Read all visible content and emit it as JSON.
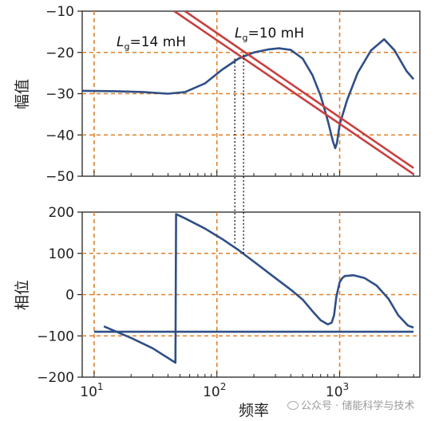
{
  "chart_data": [
    {
      "type": "line",
      "ylabel": "幅值",
      "xscale": "log",
      "xlim": [
        8,
        4500
      ],
      "ylim": [
        -50,
        -10
      ],
      "yticks": [
        -10,
        -20,
        -30,
        -40,
        -50
      ],
      "grid": true,
      "annotations": [
        {
          "L": "L",
          "sub": "g",
          "text": "=14 mH"
        },
        {
          "L": "L",
          "sub": "g",
          "text": "=10 mH"
        }
      ],
      "series": [
        {
          "role": "converter-magnitude",
          "color": "#2f4f86",
          "x": [
            8,
            15,
            25,
            40,
            55,
            80,
            110,
            150,
            200,
            260,
            320,
            400,
            500,
            600,
            700,
            800,
            880,
            920,
            950,
            1000,
            1150,
            1400,
            1800,
            2300,
            2800,
            3500,
            4000
          ],
          "y": [
            -29.3,
            -29.4,
            -29.6,
            -30,
            -29.6,
            -27.5,
            -24.2,
            -21.5,
            -20.0,
            -19.3,
            -19.0,
            -19.4,
            -21.5,
            -25.5,
            -30.5,
            -36.5,
            -41.5,
            -43.2,
            -42.0,
            -37.5,
            -31.5,
            -25.0,
            -19.5,
            -16.8,
            -19.5,
            -24.5,
            -26.5
          ]
        },
        {
          "role": "grid-impedance-Lg14",
          "color": "#c84040",
          "x": [
            45,
            4000
          ],
          "y": [
            -10,
            -49.5
          ]
        },
        {
          "role": "grid-impedance-Lg10",
          "color": "#c84040",
          "x": [
            55,
            4000
          ],
          "y": [
            -10,
            -48
          ]
        }
      ]
    },
    {
      "type": "line",
      "xlabel": "频率",
      "ylabel": "相位",
      "xscale": "log",
      "xlim": [
        8,
        4500
      ],
      "ylim": [
        -200,
        200
      ],
      "yticks": [
        200,
        100,
        0,
        -100,
        -200
      ],
      "xticks": [
        {
          "value": 10,
          "base": "10",
          "exp": "1"
        },
        {
          "value": 100,
          "base": "10",
          "exp": "2"
        },
        {
          "value": 1000,
          "base": "10",
          "exp": "3"
        }
      ],
      "grid": true,
      "series": [
        {
          "role": "converter-phase",
          "color": "#2f4f86",
          "x": [
            12,
            20,
            30,
            46,
            46.5,
            55,
            80,
            110,
            150,
            200,
            300,
            400,
            500,
            600,
            700,
            800,
            860,
            900,
            940,
            1000,
            1050,
            1100,
            1300,
            1600,
            2000,
            2500,
            3000,
            3600,
            4000
          ],
          "y": [
            -77,
            -105,
            -130,
            -165,
            195,
            185,
            160,
            135,
            108,
            80,
            40,
            12,
            -12,
            -40,
            -62,
            -72,
            -68,
            -50,
            -5,
            30,
            40,
            45,
            47,
            40,
            22,
            -10,
            -50,
            -75,
            -80
          ]
        },
        {
          "role": "grid-phase",
          "color": "#2f4f86",
          "x": [
            10,
            4000
          ],
          "y": [
            -90,
            -90
          ]
        }
      ]
    }
  ],
  "watermark": "公众号 · 储能科学与技术",
  "colors": {
    "curve": "#2f4f86",
    "impedance": "#c84040",
    "grid": "#e0802a"
  }
}
